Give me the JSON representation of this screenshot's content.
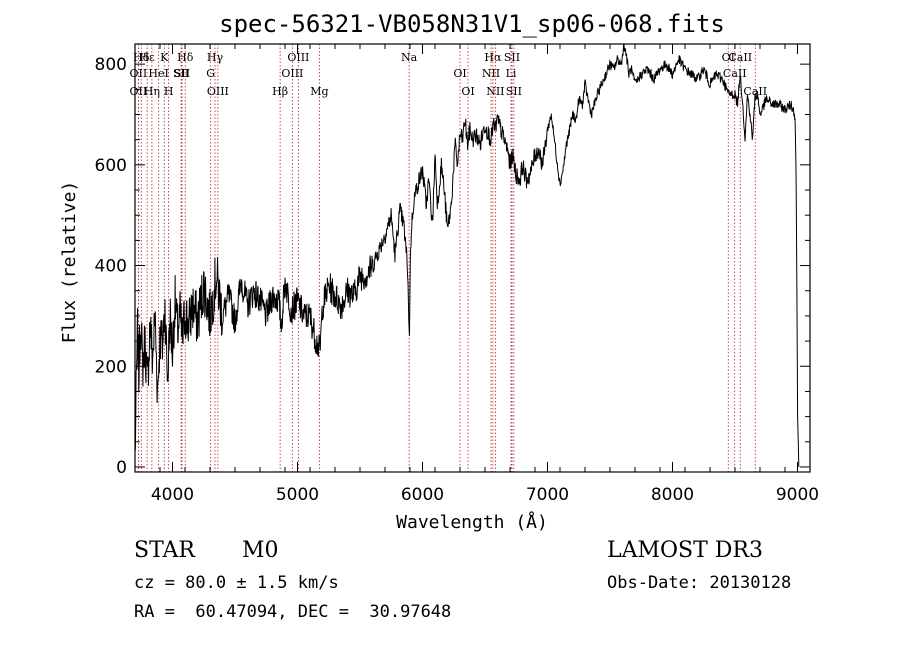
{
  "chart_data": {
    "type": "line",
    "title": "spec-56321-VB058N31V1_sp06-068.fits",
    "xlabel": "Wavelength (Å)",
    "ylabel": "Flux (relative)",
    "xlim": [
      3700,
      9100
    ],
    "ylim": [
      -10,
      840
    ],
    "xticks": [
      4000,
      5000,
      6000,
      7000,
      8000,
      9000
    ],
    "yticks": [
      0,
      200,
      400,
      600,
      800
    ],
    "grid": false,
    "spectrum": {
      "name": "flux",
      "x": [
        3700,
        3710,
        3720,
        3730,
        3745,
        3760,
        3780,
        3800,
        3820,
        3840,
        3860,
        3880,
        3900,
        3920,
        3940,
        3960,
        3980,
        4000,
        4020,
        4040,
        4060,
        4080,
        4100,
        4130,
        4160,
        4200,
        4250,
        4300,
        4350,
        4400,
        4450,
        4500,
        4550,
        4600,
        4650,
        4700,
        4750,
        4800,
        4850,
        4870,
        4900,
        4950,
        5000,
        5050,
        5100,
        5150,
        5180,
        5200,
        5250,
        5300,
        5350,
        5400,
        5450,
        5500,
        5550,
        5600,
        5650,
        5700,
        5750,
        5780,
        5800,
        5820,
        5850,
        5880,
        5890,
        5895,
        5900,
        5910,
        5930,
        5960,
        6000,
        6030,
        6050,
        6080,
        6100,
        6120,
        6150,
        6170,
        6200,
        6230,
        6260,
        6280,
        6300,
        6320,
        6340,
        6360,
        6380,
        6400,
        6430,
        6460,
        6500,
        6530,
        6550,
        6563,
        6580,
        6600,
        6640,
        6680,
        6700,
        6720,
        6750,
        6780,
        6800,
        6830,
        6860,
        6900,
        6930,
        6960,
        7000,
        7030,
        7060,
        7100,
        7130,
        7150,
        7170,
        7200,
        7230,
        7250,
        7280,
        7300,
        7350,
        7400,
        7450,
        7500,
        7530,
        7560,
        7590,
        7610,
        7630,
        7650,
        7670,
        7700,
        7750,
        7800,
        7850,
        7900,
        7950,
        8000,
        8050,
        8100,
        8150,
        8200,
        8250,
        8300,
        8350,
        8400,
        8450,
        8500,
        8520,
        8540,
        8560,
        8580,
        8600,
        8620,
        8640,
        8660,
        8680,
        8700,
        8750,
        8800,
        8850,
        8900,
        8950,
        8980,
        8990,
        9000,
        9010
      ],
      "y": [
        20,
        150,
        280,
        180,
        300,
        200,
        250,
        160,
        290,
        210,
        300,
        150,
        260,
        240,
        320,
        170,
        300,
        230,
        330,
        270,
        300,
        250,
        310,
        280,
        320,
        290,
        360,
        300,
        380,
        300,
        340,
        290,
        370,
        320,
        350,
        330,
        300,
        340,
        330,
        280,
        370,
        310,
        330,
        300,
        300,
        250,
        230,
        320,
        360,
        340,
        320,
        350,
        340,
        380,
        380,
        400,
        430,
        460,
        500,
        420,
        470,
        510,
        480,
        400,
        300,
        240,
        380,
        470,
        530,
        560,
        590,
        520,
        570,
        480,
        620,
        520,
        600,
        560,
        470,
        520,
        640,
        600,
        660,
        650,
        690,
        640,
        670,
        650,
        660,
        640,
        680,
        660,
        650,
        680,
        670,
        690,
        660,
        630,
        600,
        620,
        580,
        570,
        600,
        570,
        580,
        620,
        630,
        600,
        670,
        700,
        640,
        560,
        600,
        640,
        660,
        700,
        690,
        730,
        720,
        760,
        700,
        740,
        770,
        800,
        790,
        810,
        800,
        840,
        820,
        780,
        790,
        760,
        780,
        790,
        770,
        790,
        800,
        780,
        810,
        790,
        780,
        770,
        790,
        760,
        780,
        770,
        740,
        740,
        720,
        780,
        730,
        650,
        740,
        700,
        650,
        735,
        740,
        700,
        730,
        720,
        720,
        710,
        720,
        700,
        560,
        120,
        0
      ]
    },
    "lines": [
      {
        "name": "Hδ",
        "wavelength": 3750
      },
      {
        "name": "OII",
        "wavelength": 3727
      },
      {
        "name": "OII",
        "wavelength": 3727
      },
      {
        "name": "Hε",
        "wavelength": 3797
      },
      {
        "name": "HeI",
        "wavelength": 3889
      },
      {
        "name": "Hη",
        "wavelength": 3835
      },
      {
        "name": "K",
        "wavelength": 3934
      },
      {
        "name": "SII",
        "wavelength": 4069
      },
      {
        "name": "H",
        "wavelength": 3969
      },
      {
        "name": "Hδ",
        "wavelength": 4102
      },
      {
        "name": "SII",
        "wavelength": 4076
      },
      {
        "name": "OIII",
        "wavelength": 4363
      },
      {
        "name": "Hγ",
        "wavelength": 4340
      },
      {
        "name": "G",
        "wavelength": 4305
      },
      {
        "name": "Hβ",
        "wavelength": 4861
      },
      {
        "name": "OIII",
        "wavelength": 5007
      },
      {
        "name": "OIII",
        "wavelength": 4959
      },
      {
        "name": "Mg",
        "wavelength": 5175
      },
      {
        "name": "Na",
        "wavelength": 5893
      },
      {
        "name": "OI",
        "wavelength": 6300
      },
      {
        "name": "OI",
        "wavelength": 6364
      },
      {
        "name": "Hα",
        "wavelength": 6563
      },
      {
        "name": "NII",
        "wavelength": 6548
      },
      {
        "name": "NII",
        "wavelength": 6583
      },
      {
        "name": "SII",
        "wavelength": 6716
      },
      {
        "name": "Li",
        "wavelength": 6708
      },
      {
        "name": "SII",
        "wavelength": 6731
      },
      {
        "name": "CaII",
        "wavelength": 8542
      },
      {
        "name": "CaII",
        "wavelength": 8498
      },
      {
        "name": "CaII",
        "wavelength": 8662
      },
      {
        "name": "OI",
        "wavelength": 8446
      }
    ],
    "colors": {
      "spectrum": "#000000",
      "axes": "#000000",
      "lines": "#b22222"
    }
  },
  "info": {
    "class_text": "STAR",
    "subclass_text": "M0",
    "redshift_text": "cz = 80.0 ± 1.5 km/s",
    "coords_text": "RA =  60.47094, DEC =  30.97648",
    "survey_text": "LAMOST DR3",
    "obsdate_text": "Obs-Date: 20130128"
  }
}
